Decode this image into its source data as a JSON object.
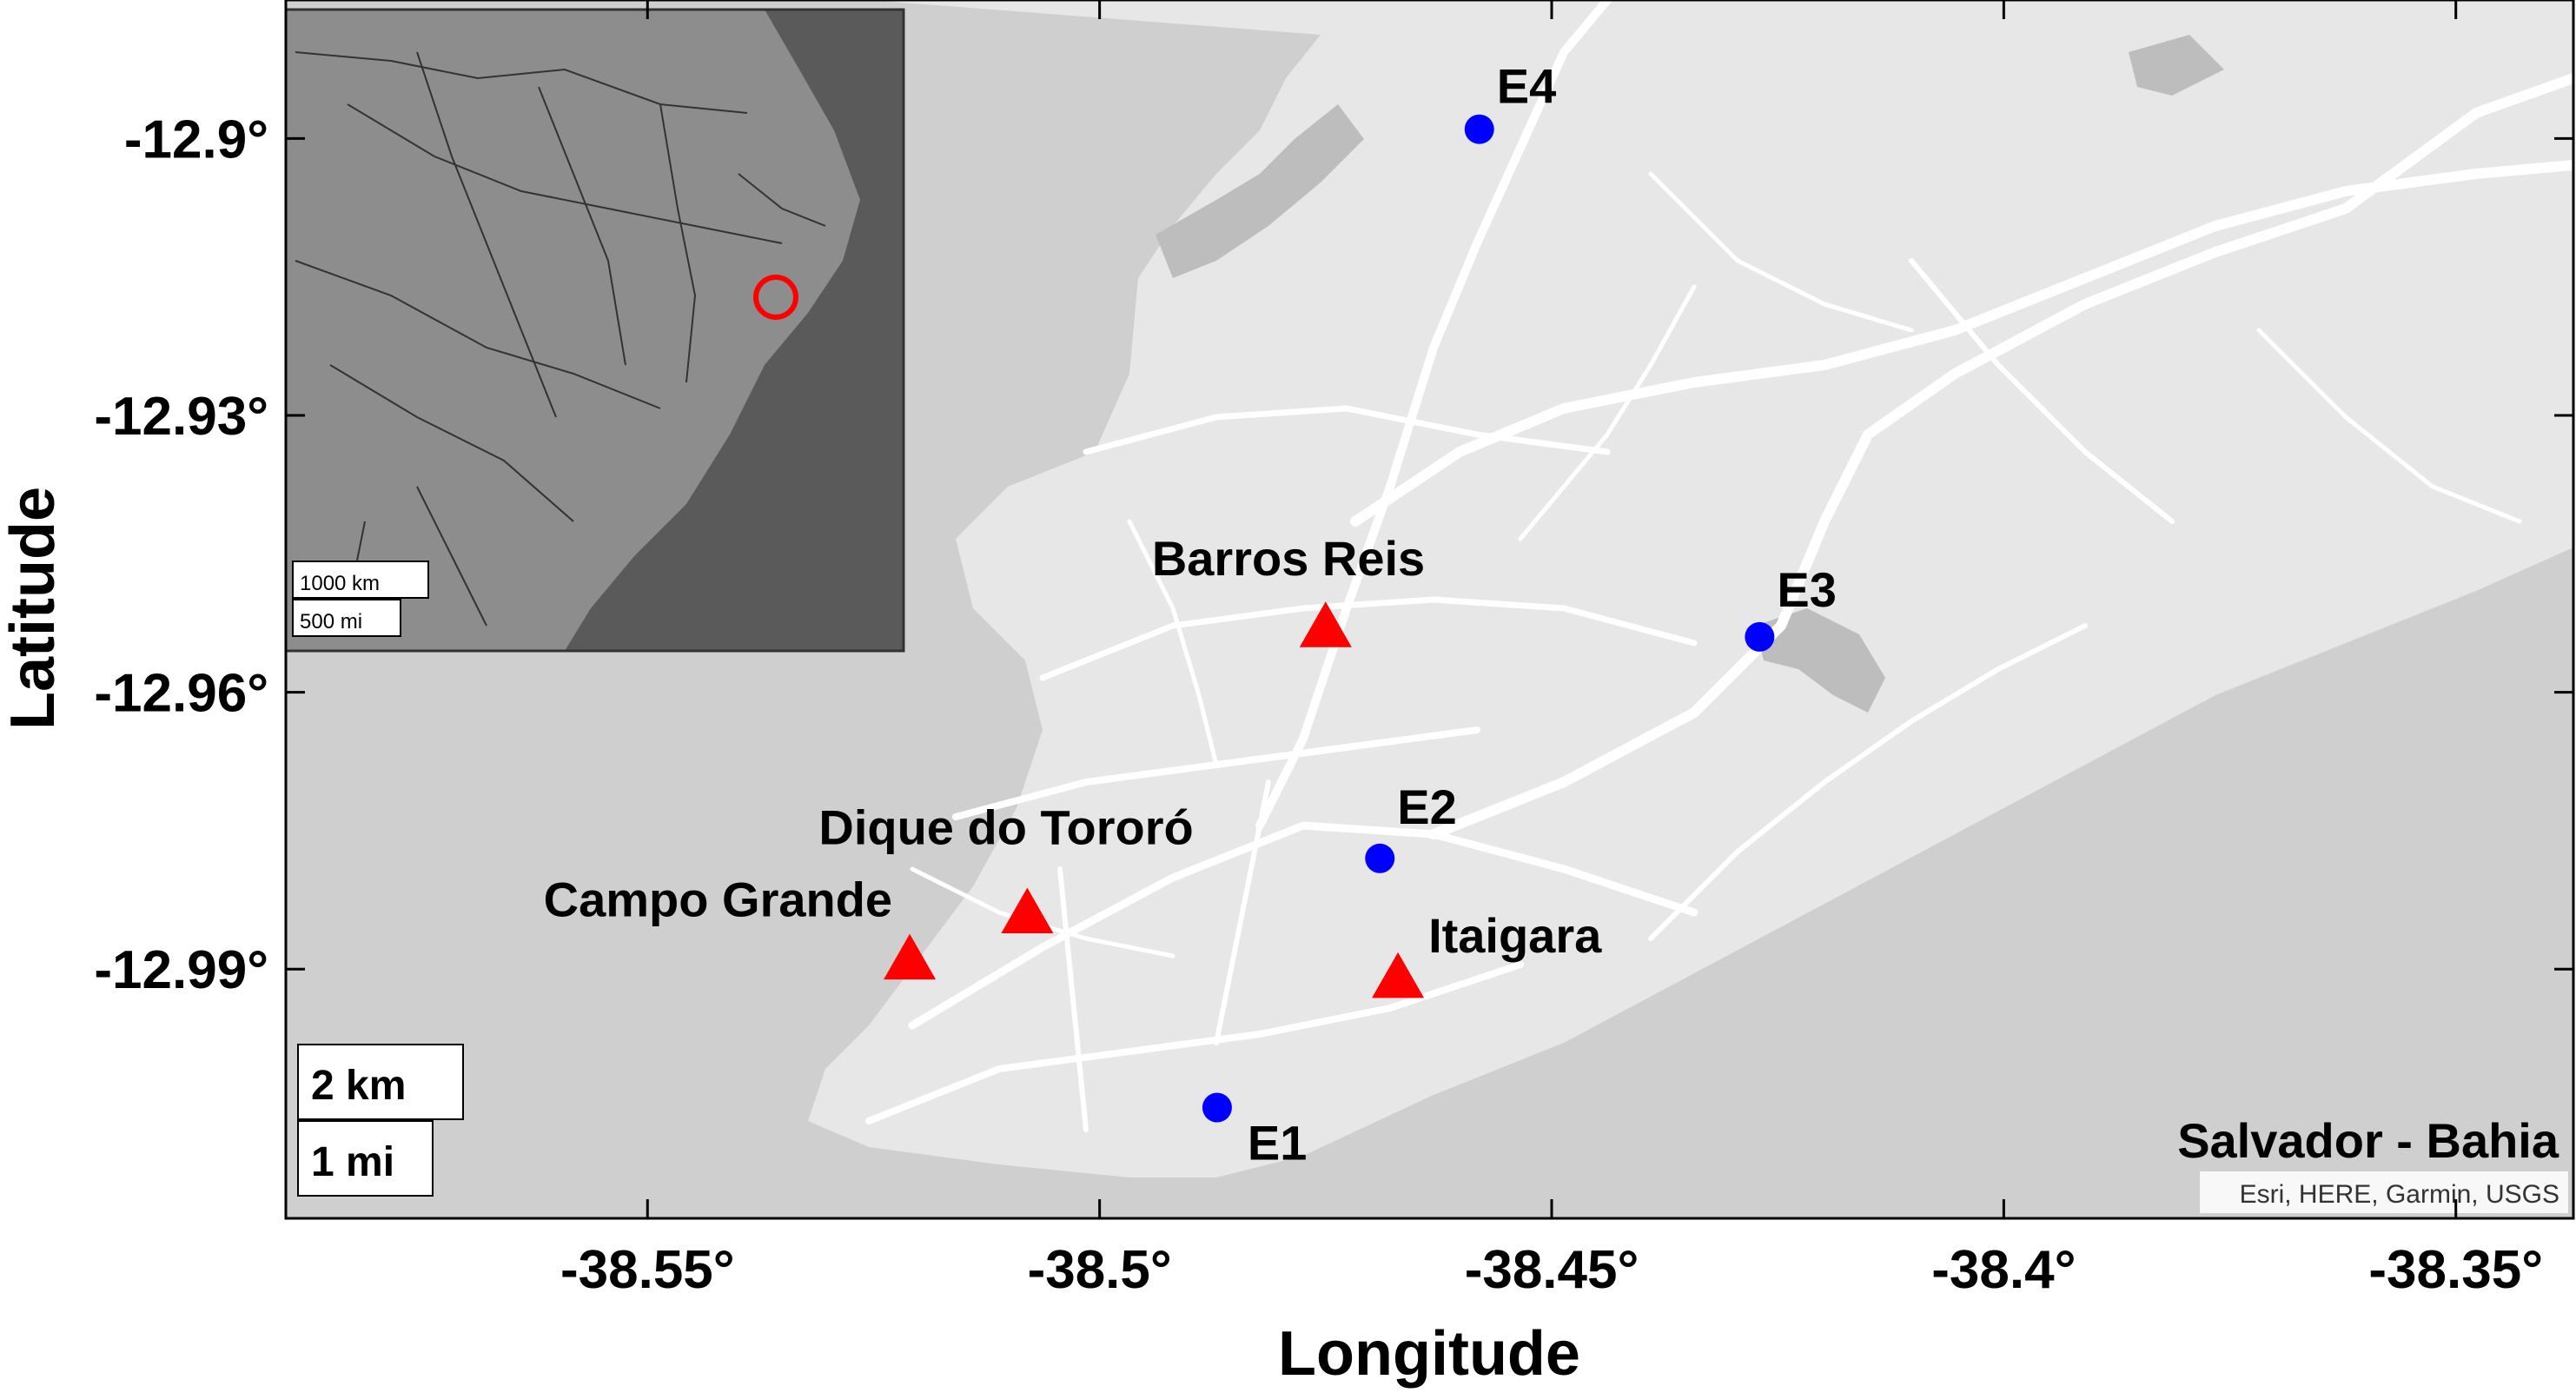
{
  "map": {
    "region_label": "Salvador - Bahia",
    "attribution": "Esri, HERE, Garmin, USGS",
    "xlabel": "Longitude",
    "ylabel": "Latitude",
    "x_ticks": [
      {
        "value": -38.55,
        "label": "-38.55°"
      },
      {
        "value": -38.5,
        "label": "-38.5°"
      },
      {
        "value": -38.45,
        "label": "-38.45°"
      },
      {
        "value": -38.4,
        "label": "-38.4°"
      },
      {
        "value": -38.35,
        "label": "-38.35°"
      }
    ],
    "y_ticks": [
      {
        "value": -12.9,
        "label": "-12.9°"
      },
      {
        "value": -12.93,
        "label": "-12.93°"
      },
      {
        "value": -12.96,
        "label": "-12.96°"
      },
      {
        "value": -12.99,
        "label": "-12.99°"
      }
    ],
    "lon_range": [
      -38.59,
      -38.337
    ],
    "lat_range": [
      -13.017,
      -12.885
    ],
    "triangle_sites": [
      {
        "name": "Barros Reis",
        "lon": -38.475,
        "lat": -12.953
      },
      {
        "name": "Dique do Tororó",
        "lon": -38.508,
        "lat": -12.984
      },
      {
        "name": "Campo Grande",
        "lon": -38.521,
        "lat": -12.989
      },
      {
        "name": "Itaigara",
        "lon": -38.467,
        "lat": -12.991
      }
    ],
    "circle_stations": [
      {
        "name": "E1",
        "lon": -38.487,
        "lat": -13.005
      },
      {
        "name": "E2",
        "lon": -38.469,
        "lat": -12.978
      },
      {
        "name": "E3",
        "lon": -38.427,
        "lat": -12.954
      },
      {
        "name": "E4",
        "lon": -38.458,
        "lat": -12.899
      }
    ],
    "scale_bar": {
      "km_label": "2 km",
      "mi_label": "1 mi"
    },
    "inset": {
      "scale_km_label": "1000 km",
      "scale_mi_label": "500 mi",
      "highlight_marker": "red-circle"
    },
    "colors": {
      "triangle": "#ff0000",
      "circle": "#0000ff",
      "water": "#cfcfcf",
      "land": "#e7e7e7",
      "road": "#ffffff"
    }
  }
}
